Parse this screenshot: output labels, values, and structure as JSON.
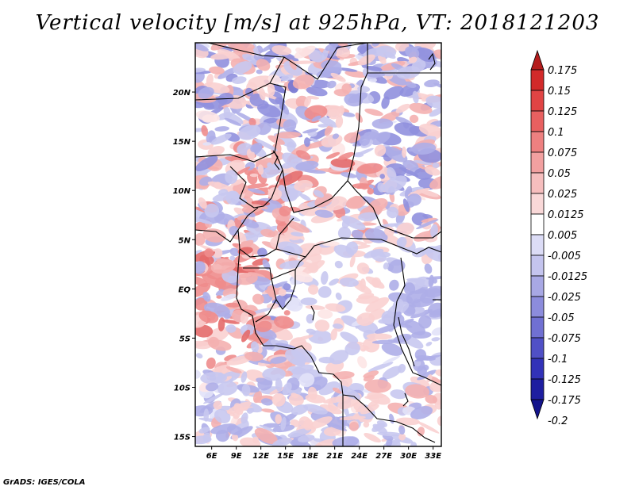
{
  "title": "Vertical velocity [m/s] at 925hPa, VT: 2018121203",
  "credit": "GrADS: IGES/COLA",
  "map": {
    "lon_ticks": [
      "6E",
      "9E",
      "12E",
      "15E",
      "18E",
      "21E",
      "24E",
      "27E",
      "30E",
      "33E"
    ],
    "lat_ticks": [
      "20N",
      "15N",
      "10N",
      "5N",
      "EQ",
      "5S",
      "10S",
      "15S"
    ],
    "lon_range": [
      4,
      34
    ],
    "lat_range": [
      -16,
      25
    ]
  },
  "colorbar": {
    "labels": [
      "0.175",
      "0.15",
      "0.125",
      "0.1",
      "0.075",
      "0.05",
      "0.025",
      "0.0125",
      "0.005",
      "-0.005",
      "-0.0125",
      "-0.025",
      "-0.05",
      "-0.075",
      "-0.1",
      "-0.125",
      "-0.175",
      "-0.2"
    ],
    "colors": [
      "#b41c1c",
      "#d22a2a",
      "#e04444",
      "#e86060",
      "#ee8080",
      "#f2a0a0",
      "#f6bebe",
      "#f9d8d8",
      "#ffffff",
      "#dcdcf6",
      "#c4c4ee",
      "#a8a8e4",
      "#8c8cdc",
      "#7070d2",
      "#5050c6",
      "#3232b8",
      "#1e1ea0"
    ]
  }
}
